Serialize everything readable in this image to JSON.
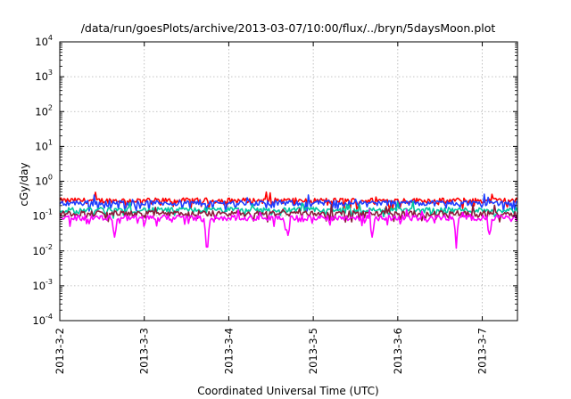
{
  "chart_data": {
    "type": "line",
    "title": "/data/run/goesPlots/archive/2013-03-07/10:00/flux/../bryn/5daysMoon.plot",
    "xlabel": "Coordinated Universal Time (UTC)",
    "ylabel": "cGy/day",
    "yscale": "log",
    "ylim": [
      0.0001,
      10000
    ],
    "xlim": [
      "2013-03-02T00:00",
      "2013-03-07T10:00"
    ],
    "xticks": [
      "2013-3-2",
      "2013-3-3",
      "2013-3-4",
      "2013-3-5",
      "2013-3-6",
      "2013-3-7"
    ],
    "yticks": [
      {
        "base": "10",
        "exp": "-4"
      },
      {
        "base": "10",
        "exp": "-3"
      },
      {
        "base": "10",
        "exp": "-2"
      },
      {
        "base": "10",
        "exp": "-1"
      },
      {
        "base": "10",
        "exp": "0"
      },
      {
        "base": "10",
        "exp": "1"
      },
      {
        "base": "10",
        "exp": "2"
      },
      {
        "base": "10",
        "exp": "3"
      },
      {
        "base": "10",
        "exp": "4"
      }
    ],
    "grid": true,
    "series": [
      {
        "color": "#ff0000",
        "level": 0.28,
        "dips": []
      },
      {
        "color": "#1f3fff",
        "level": 0.24,
        "dips": []
      },
      {
        "color": "#00c8a0",
        "level": 0.15,
        "dips": []
      },
      {
        "color": "#8b1a3a",
        "level": 0.12,
        "dips": []
      },
      {
        "color": "#ff00ff",
        "level": 0.09,
        "dips": [
          {
            "x": "2013-03-02T15:40",
            "y": 0.025
          },
          {
            "x": "2013-03-03T17:50",
            "y": 0.013
          },
          {
            "x": "2013-03-04T16:40",
            "y": 0.028
          },
          {
            "x": "2013-03-05T16:40",
            "y": 0.025
          },
          {
            "x": "2013-03-06T16:40",
            "y": 0.012
          },
          {
            "x": "2013-03-07T02:10",
            "y": 0.03
          }
        ]
      }
    ]
  }
}
